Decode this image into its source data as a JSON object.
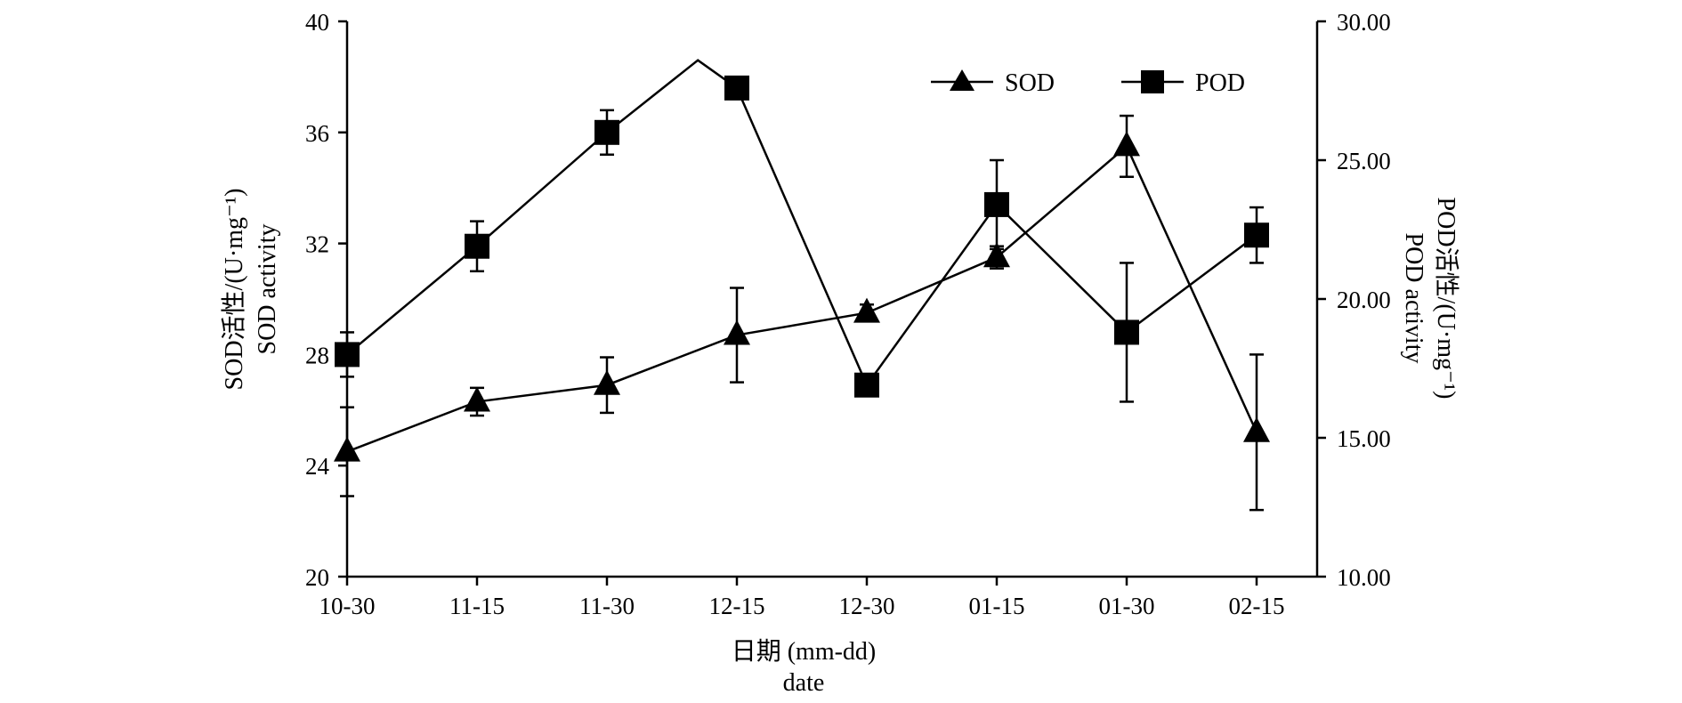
{
  "chart_data": {
    "type": "line",
    "categories": [
      "10-30",
      "11-15",
      "11-30",
      "12-15",
      "12-30",
      "01-15",
      "01-30",
      "02-15"
    ],
    "xlabel": [
      "日期 (mm-dd)",
      "date"
    ],
    "ylabel_left": [
      "SOD活性/(U·mg⁻¹)",
      "SOD activity"
    ],
    "ylabel_right": [
      "POD活性/(U·mg⁻¹)",
      "POD activity"
    ],
    "y_left": {
      "min": 20,
      "max": 40,
      "ticks": [
        "20",
        "24",
        "28",
        "32",
        "36",
        "40"
      ]
    },
    "y_right": {
      "min": 10,
      "max": 30,
      "ticks": [
        "10.00",
        "15.00",
        "20.00",
        "25.00",
        "30.00"
      ]
    },
    "series": [
      {
        "name": "SOD",
        "axis": "left",
        "marker": "triangle",
        "x": [
          0,
          1,
          2,
          3,
          4,
          5,
          6,
          7
        ],
        "values": [
          24.5,
          26.3,
          26.9,
          28.7,
          29.5,
          31.5,
          35.5,
          25.2
        ],
        "errors": [
          1.6,
          0.5,
          1.0,
          1.7,
          0.3,
          0.4,
          1.1,
          2.8
        ],
        "line_x": [
          0,
          1,
          2,
          3,
          4,
          5,
          6,
          7
        ],
        "line_values": [
          24.5,
          26.3,
          26.9,
          28.7,
          29.5,
          31.5,
          35.5,
          25.2
        ]
      },
      {
        "name": "POD",
        "axis": "right",
        "marker": "square",
        "x": [
          0,
          1,
          2,
          3,
          4,
          5,
          6,
          7
        ],
        "values": [
          18.0,
          21.9,
          26.0,
          27.6,
          16.9,
          23.4,
          18.8,
          22.3
        ],
        "errors": [
          0.8,
          0.9,
          0.8,
          0.4,
          0.0,
          1.6,
          2.5,
          1.0
        ],
        "line_x": [
          0,
          1,
          2,
          2.7,
          3,
          4,
          5,
          6,
          7
        ],
        "line_values": [
          18.0,
          21.9,
          26.0,
          28.6,
          27.6,
          16.9,
          23.4,
          18.8,
          22.3
        ]
      }
    ],
    "legend": [
      "SOD",
      "POD"
    ],
    "legend_position": "top-right",
    "grid": false
  }
}
